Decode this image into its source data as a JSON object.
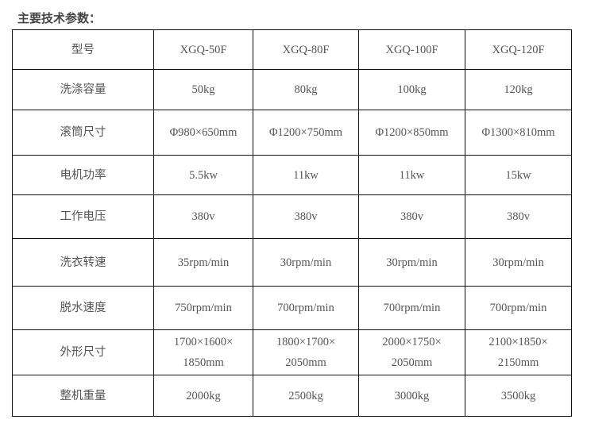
{
  "title": "主要技术参数：",
  "table": {
    "rows": [
      [
        "型号",
        "XGQ-50F",
        "XGQ-80F",
        "XGQ-100F",
        "XGQ-120F"
      ],
      [
        "洗涤容量",
        "50kg",
        "80kg",
        "100kg",
        "120kg"
      ],
      [
        "滚筒尺寸",
        "Φ980×650mm",
        "Φ1200×750mm",
        "Φ1200×850mm",
        "Φ1300×810mm"
      ],
      [
        "电机功率",
        "5.5kw",
        "11kw",
        "11kw",
        "15kw"
      ],
      [
        "工作电压",
        "380v",
        "380v",
        "380v",
        "380v"
      ],
      [
        "洗衣转速",
        "35rpm/min",
        "30rpm/min",
        "30rpm/min",
        "30rpm/min"
      ],
      [
        "脱水速度",
        "750rpm/min",
        "700rpm/min",
        "700rpm/min",
        "700rpm/min"
      ],
      [
        "外形尺寸",
        "1700×1600×1850mm",
        "1800×1700×2050mm",
        "2000×1750×2050mm",
        "2100×1850×2150mm"
      ],
      [
        "整机重量",
        "2000kg",
        "2500kg",
        "3000kg",
        "3500kg"
      ]
    ]
  }
}
